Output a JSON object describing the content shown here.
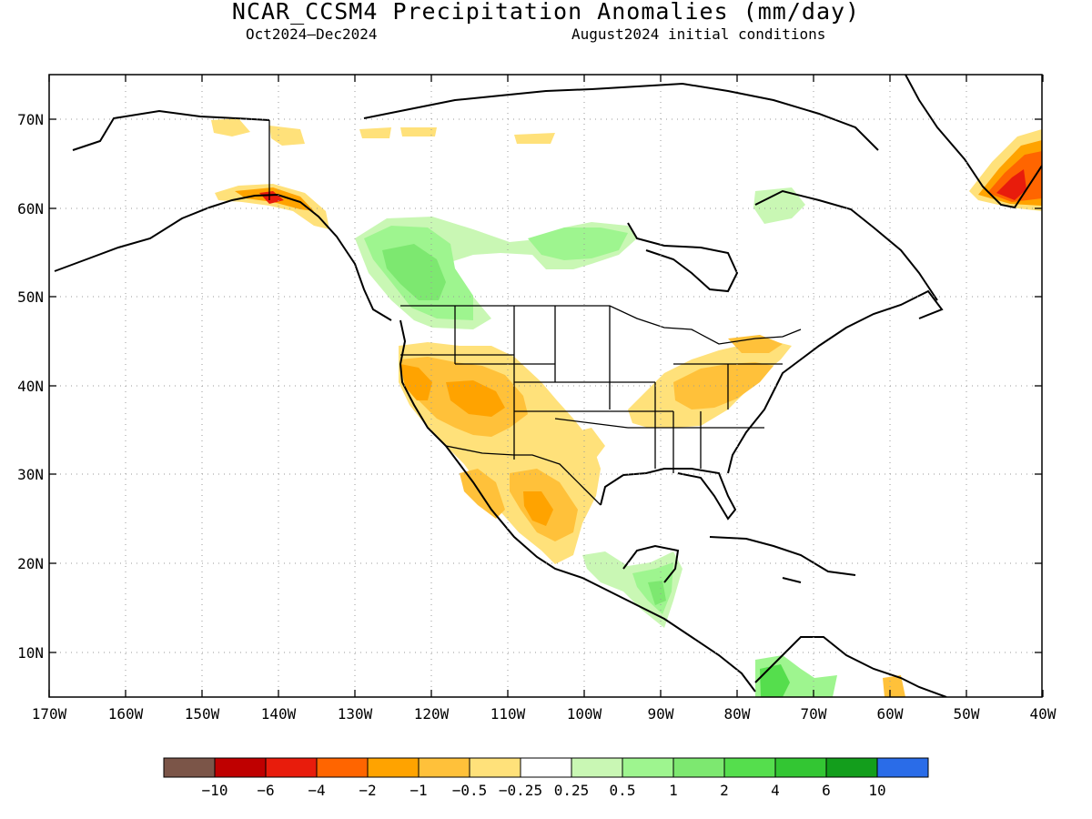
{
  "title": "NCAR_CCSM4 Precipitation Anomalies (mm/day)",
  "subtitle_left": "Oct2024–Dec2024",
  "subtitle_right": "August2024 initial conditions",
  "lat_labels": [
    "70N",
    "60N",
    "50N",
    "40N",
    "30N",
    "20N",
    "10N"
  ],
  "lon_labels": [
    "170W",
    "160W",
    "150W",
    "140W",
    "130W",
    "120W",
    "110W",
    "100W",
    "90W",
    "80W",
    "70W",
    "60W",
    "50W",
    "40W"
  ],
  "colorbar": {
    "colors": [
      "#7b5548",
      "#bf0000",
      "#e81c0c",
      "#ff6500",
      "#ffa300",
      "#ffc13a",
      "#ffe17a",
      "#ffffff",
      "#c9f7b4",
      "#9ef58f",
      "#7de870",
      "#55de4d",
      "#33c633",
      "#139e1c",
      "#2a6ce8"
    ],
    "labels": [
      "−10",
      "−6",
      "−4",
      "−2",
      "−1",
      "−0.5",
      "−0.25",
      "0.25",
      "0.5",
      "1",
      "2",
      "4",
      "6",
      "10"
    ]
  },
  "legend_colors": {
    "dry": "#ffc13a",
    "wet": "#9ef58f",
    "very_wet": "#33c633",
    "very_dry": "#e81c0c"
  }
}
